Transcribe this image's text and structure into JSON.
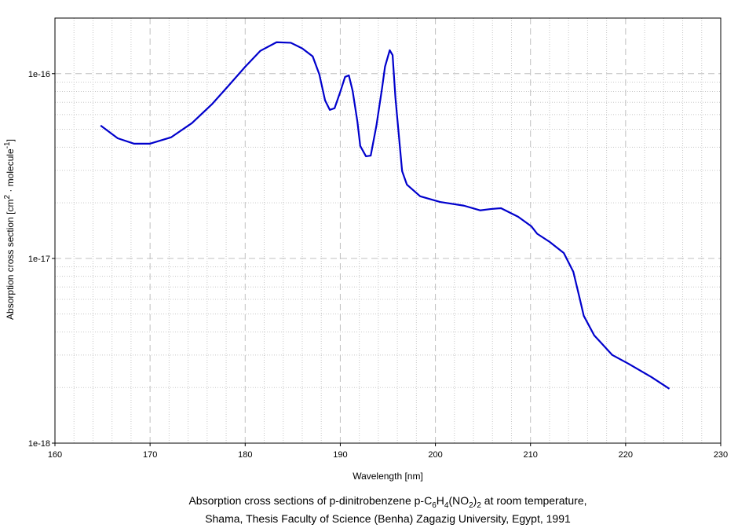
{
  "chart_data": {
    "type": "line",
    "xlabel": "Wavelength [nm]",
    "ylabel_parts": [
      "Absorption cross section [cm",
      "2",
      " · molecule",
      "-1",
      "]"
    ],
    "caption_line1_parts": [
      "Absorption cross sections of p-dinitrobenzene p-C",
      "6",
      "H",
      "4",
      "(NO",
      "2",
      ")",
      "2",
      " at room temperature,"
    ],
    "caption_line2": "Shama, Thesis Faculty of Science (Benha) Zagazig University, Egypt, 1991",
    "xlim": [
      160,
      230
    ],
    "xticks": [
      160,
      170,
      180,
      190,
      200,
      210,
      220,
      230
    ],
    "ylim": [
      1e-18,
      2e-16
    ],
    "yticks": [
      {
        "value": 1e-18,
        "label": "1e-18"
      },
      {
        "value": 1e-17,
        "label": "1e-17"
      },
      {
        "value": 1e-16,
        "label": "1e-16"
      }
    ],
    "log_y": true,
    "grid": true,
    "minor_grid": true,
    "x": [
      164.8,
      166.6,
      168.3,
      170,
      172.2,
      174.4,
      176.5,
      178.2,
      180,
      181.6,
      183.3,
      184.8,
      186,
      187.1,
      187.8,
      188.4,
      188.9,
      189.4,
      190,
      190.5,
      190.9,
      191.3,
      191.8,
      192.1,
      192.7,
      193.2,
      193.8,
      194.4,
      194.7,
      195.2,
      195.5,
      195.8,
      196.5,
      197,
      198.4,
      200.5,
      203,
      204.7,
      205.8,
      206.9,
      208.7,
      210.1,
      210.7,
      212,
      213.5,
      214.5,
      215.1,
      215.6,
      216.7,
      218.6,
      220.3,
      222.7,
      224.6
    ],
    "series": [
      {
        "color": "#0000cc",
        "values": [
          5.24e-17,
          4.47e-17,
          4.18e-17,
          4.18e-17,
          4.52e-17,
          5.4e-17,
          6.83e-17,
          8.55e-17,
          1.09e-16,
          1.33e-16,
          1.48e-16,
          1.47e-16,
          1.37e-16,
          1.24e-16,
          9.9e-17,
          7.17e-17,
          6.37e-17,
          6.5e-17,
          7.98e-17,
          9.6e-17,
          9.8e-17,
          8.06e-17,
          5.5e-17,
          4.06e-17,
          3.57e-17,
          3.6e-17,
          5.24e-17,
          8.4e-17,
          1.09e-16,
          1.34e-16,
          1.26e-16,
          7.38e-17,
          2.97e-17,
          2.51e-17,
          2.17e-17,
          2.02e-17,
          1.93e-17,
          1.82e-17,
          1.85e-17,
          1.87e-17,
          1.68e-17,
          1.49e-17,
          1.36e-17,
          1.23e-17,
          1.07e-17,
          8.47e-18,
          6.3e-18,
          4.89e-18,
          3.83e-18,
          3e-18,
          2.69e-18,
          2.28e-18,
          1.97e-18
        ]
      }
    ]
  }
}
